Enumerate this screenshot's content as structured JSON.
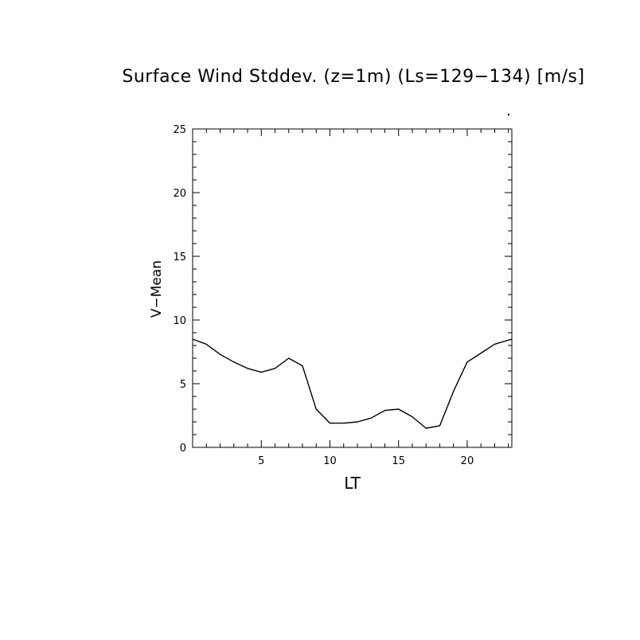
{
  "chart_data": {
    "type": "line",
    "title": "Surface Wind Stddev. (z=1m) (Ls=129−134) [m/s]",
    "xlabel": "LT",
    "ylabel": "V−Mean",
    "xlim": [
      0,
      23.25
    ],
    "ylim": [
      0,
      25
    ],
    "xticks": [
      5,
      10,
      15,
      20
    ],
    "yticks": [
      0,
      5,
      10,
      15,
      20,
      25
    ],
    "grid": false,
    "series": [
      {
        "x": [
          0.0,
          1.0,
          2.0,
          3.0,
          4.0,
          5.0,
          6.0,
          7.0,
          8.0,
          9.0,
          10.0,
          11.0,
          12.0,
          13.0,
          14.0,
          15.0,
          16.0,
          17.0,
          18.0,
          19.0,
          20.0,
          21.0,
          22.0,
          23.25
        ],
        "y": [
          8.5,
          8.1,
          7.3,
          6.7,
          6.2,
          5.9,
          6.2,
          7.0,
          6.4,
          3.0,
          1.9,
          1.9,
          2.0,
          2.3,
          2.9,
          3.0,
          2.4,
          1.5,
          1.7,
          4.4,
          6.7,
          7.4,
          8.1,
          8.5
        ]
      }
    ]
  }
}
